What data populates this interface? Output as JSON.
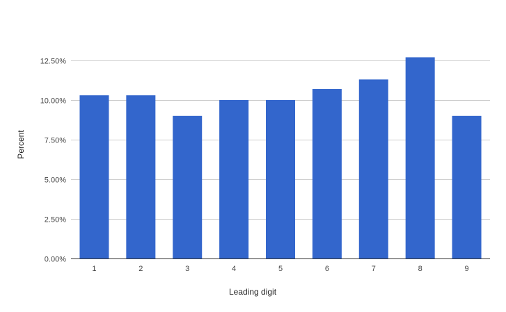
{
  "chart_data": {
    "type": "bar",
    "title": "",
    "xlabel": "Leading digit",
    "ylabel": "Percent",
    "categories": [
      "1",
      "2",
      "3",
      "4",
      "5",
      "6",
      "7",
      "8",
      "9"
    ],
    "series": [
      {
        "values": [
          10.3,
          10.3,
          9.0,
          10.0,
          10.0,
          10.7,
          11.3,
          12.7,
          9.0
        ],
        "color": "#3366cc"
      }
    ],
    "ylim": [
      0,
      12.5
    ],
    "yticks": [
      0,
      2.5,
      5,
      7.5,
      10,
      12.5
    ],
    "ytick_labels": [
      "0.00%",
      "2.50%",
      "5.00%",
      "7.50%",
      "10.00%",
      "12.50%"
    ],
    "grid": true,
    "legend": "none"
  },
  "colors": {
    "bar": "#3366cc",
    "grid": "#cccccc",
    "axis": "#333333"
  }
}
